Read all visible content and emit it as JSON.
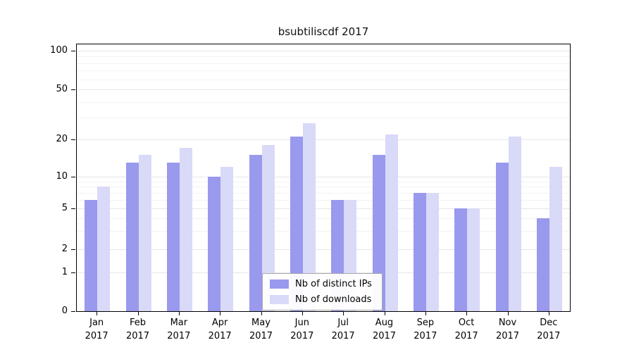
{
  "chart_data": {
    "type": "bar",
    "title": "bsubtiliscdf 2017",
    "categories": [
      "Jan",
      "Feb",
      "Mar",
      "Apr",
      "May",
      "Jun",
      "Jul",
      "Aug",
      "Sep",
      "Oct",
      "Nov",
      "Dec"
    ],
    "category_year": "2017",
    "series": [
      {
        "name": "Nb of distinct IPs",
        "color": "#9999ee",
        "values": [
          6,
          13,
          13,
          10,
          15,
          21,
          6,
          15,
          7,
          5,
          13,
          4
        ]
      },
      {
        "name": "Nb of downloads",
        "color": "#d9d9f8",
        "values": [
          8,
          15,
          17,
          12,
          18,
          27,
          6,
          22,
          7,
          5,
          21,
          12
        ]
      }
    ],
    "xlabel": "",
    "ylabel": "",
    "y_axis": {
      "scale": "log-like",
      "ticks": [
        100,
        50,
        20,
        10,
        5,
        2,
        1,
        0
      ],
      "minor_gridlines": [
        3,
        4,
        6,
        7,
        8,
        9,
        30,
        40,
        60,
        70,
        80,
        90
      ],
      "ylim": [
        0,
        100
      ]
    },
    "grid": true,
    "legend_position": "bottom-center"
  },
  "colors": {
    "bar_ips": "#9999ee",
    "bar_downloads": "#d9d9f8",
    "grid_major": "#e6e6e6",
    "grid_minor": "#f2f2f2",
    "axis": "#000000",
    "background": "#ffffff"
  }
}
